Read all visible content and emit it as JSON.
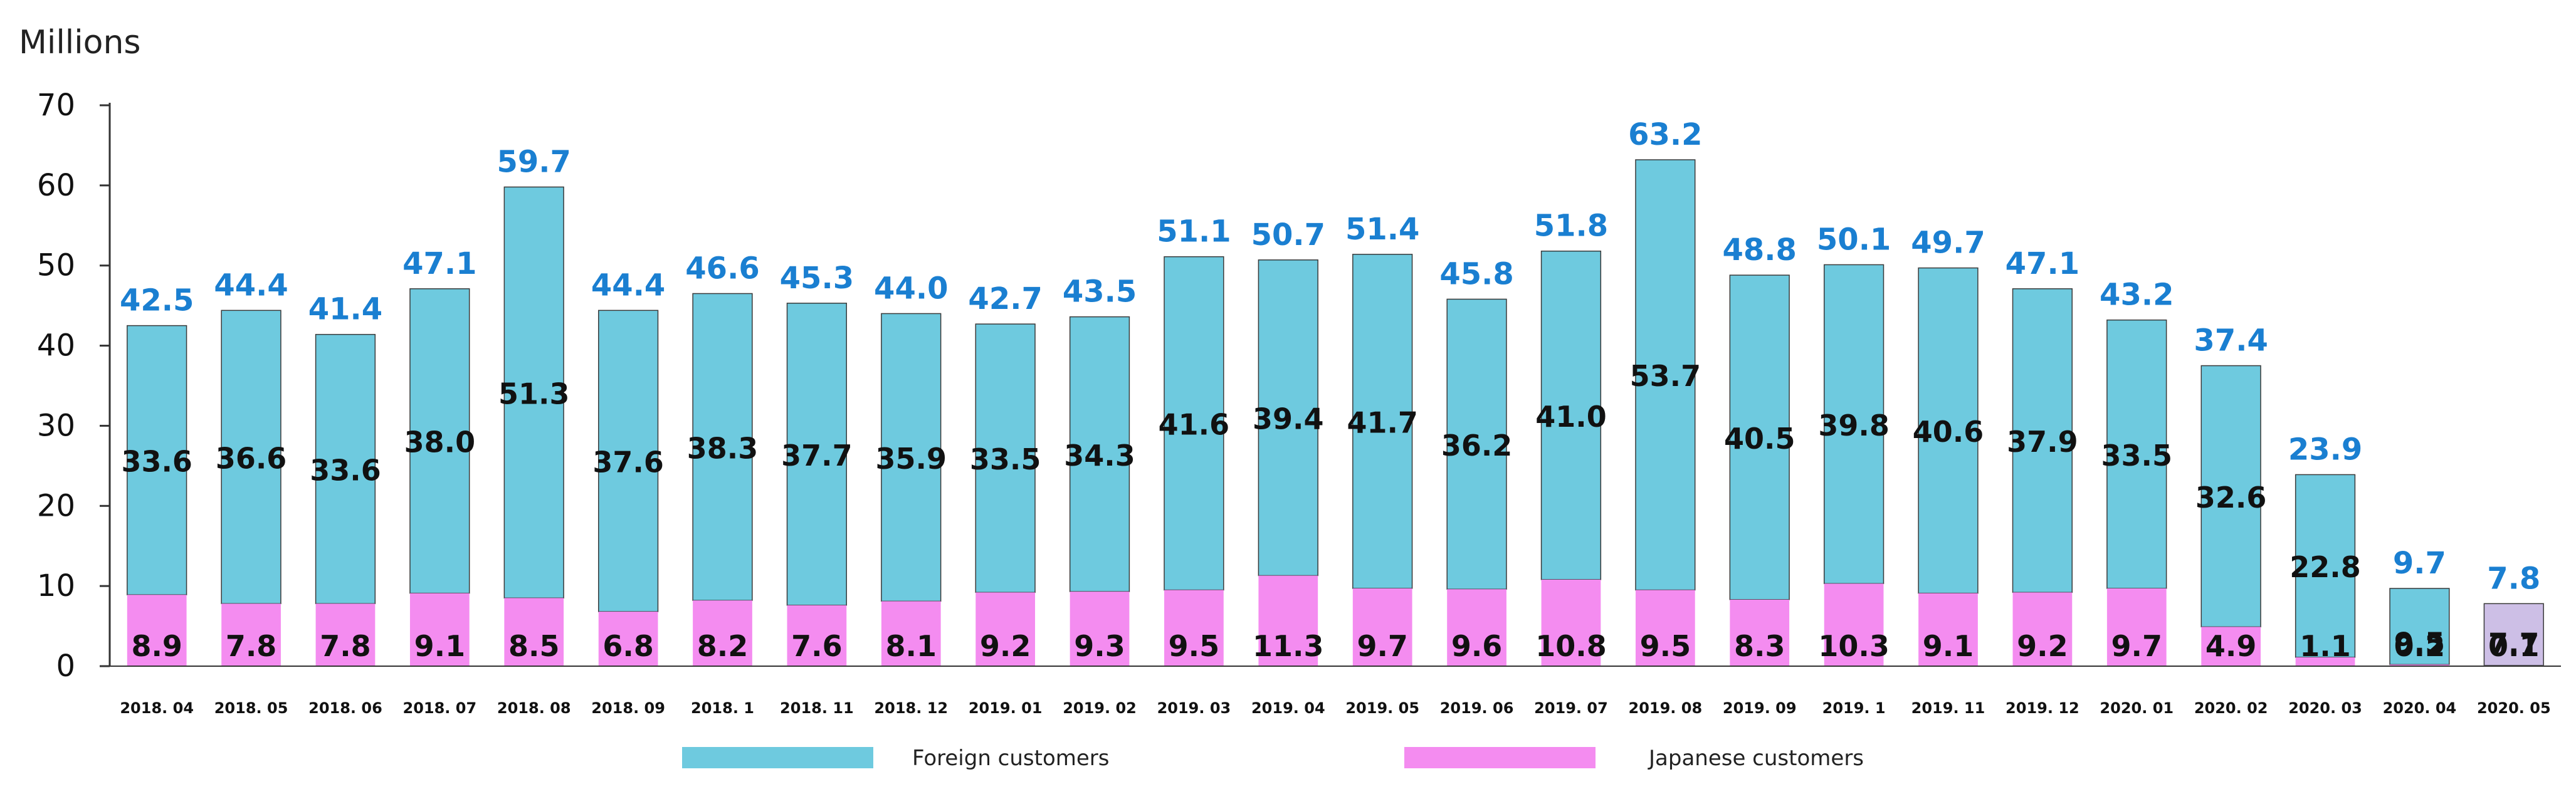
{
  "chart_data": {
    "type": "bar",
    "stacked": true,
    "unit_label": "Millions",
    "ylim": [
      0,
      70
    ],
    "yticks": [
      0,
      10,
      20,
      30,
      40,
      50,
      60,
      70
    ],
    "categories": [
      "2018. 04",
      "2018. 05",
      "2018. 06",
      "2018. 07",
      "2018. 08",
      "2018. 09",
      "2018. 1",
      "2018. 11",
      "2018. 12",
      "2019. 01",
      "2019. 02",
      "2019. 03",
      "2019. 04",
      "2019. 05",
      "2019. 06",
      "2019. 07",
      "2019. 08",
      "2019. 09",
      "2019. 1",
      "2019. 11",
      "2019. 12",
      "2020. 01",
      "2020. 02",
      "2020. 03",
      "2020. 04",
      "2020. 05"
    ],
    "series": [
      {
        "name": "Japanese customers",
        "color": "#f48cf0",
        "values": [
          8.9,
          7.8,
          7.8,
          9.1,
          8.5,
          6.8,
          8.2,
          7.6,
          8.1,
          9.2,
          9.3,
          9.5,
          11.3,
          9.7,
          9.6,
          10.8,
          9.5,
          8.3,
          10.3,
          9.1,
          9.2,
          9.7,
          4.9,
          1.1,
          0.2,
          0.1
        ],
        "labels": [
          "8.9",
          "7.8",
          "7.8",
          "9.1",
          "8.5",
          "6.8",
          "8.2",
          "7.6",
          "8.1",
          "9.2",
          "9.3",
          "9.5",
          "11.3",
          "9.7",
          "9.6",
          "10.8",
          "9.5",
          "8.3",
          "10.3",
          "9.1",
          "9.2",
          "9.7",
          "4.9",
          "1.1",
          "0.2",
          "0.1"
        ]
      },
      {
        "name": "Foreign customers",
        "color": "#6ecadf",
        "values": [
          33.6,
          36.6,
          33.6,
          38.0,
          51.3,
          37.6,
          38.3,
          37.7,
          35.9,
          33.5,
          34.3,
          41.6,
          39.4,
          41.7,
          36.2,
          41.0,
          53.7,
          40.5,
          39.8,
          40.6,
          37.9,
          33.5,
          32.6,
          22.8,
          9.5,
          7.7
        ],
        "labels": [
          "33.6",
          "36.6",
          "33.6",
          "38.0",
          "51.3",
          "37.6",
          "38.3",
          "37.7",
          "35.9",
          "33.5",
          "34.3",
          "41.6",
          "39.4",
          "41.7",
          "36.2",
          "41.0",
          "53.7",
          "40.5",
          "39.8",
          "40.6",
          "37.9",
          "33.5",
          "32.6",
          "22.8",
          "9.5",
          "7.7"
        ]
      }
    ],
    "totals": [
      42.5,
      44.4,
      41.4,
      47.1,
      59.7,
      44.4,
      46.6,
      45.3,
      44.0,
      42.7,
      43.5,
      51.1,
      50.7,
      51.4,
      45.8,
      51.8,
      63.2,
      48.8,
      50.1,
      49.7,
      47.1,
      43.2,
      37.4,
      23.9,
      9.7,
      7.8
    ],
    "total_labels": [
      "42.5",
      "44.4",
      "41.4",
      "47.1",
      "59.7",
      "44.4",
      "46.6",
      "45.3",
      "44.0",
      "42.7",
      "43.5",
      "51.1",
      "50.7",
      "51.4",
      "45.8",
      "51.8",
      "63.2",
      "48.8",
      "50.1",
      "49.7",
      "47.1",
      "43.2",
      "37.4",
      "23.9",
      "9.7",
      "7.8"
    ],
    "last_bar_color": "#cdbfe6",
    "total_label_color": "#1a7fd1",
    "legend": [
      {
        "name": "Foreign customers",
        "color": "#6ecadf"
      },
      {
        "name": "Japanese customers",
        "color": "#f48cf0"
      }
    ],
    "legend_position": "bottom"
  }
}
